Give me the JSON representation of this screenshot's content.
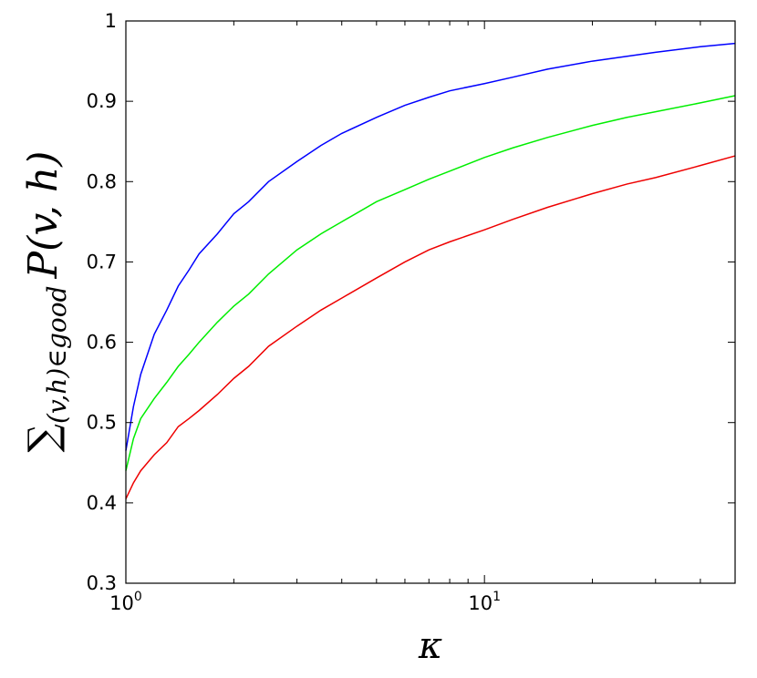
{
  "chart_data": {
    "type": "line",
    "title": "",
    "xlabel": "κ",
    "ylabel": {
      "sum": "∑",
      "subscript": "(v,h)∈good",
      "main": "P(v, h)"
    },
    "x_scale": "log",
    "xlim": [
      1,
      50
    ],
    "ylim": [
      0.3,
      1.0
    ],
    "grid": false,
    "legend": "none",
    "x_ticks": [
      {
        "value": 1,
        "base": "10",
        "exp": "0"
      },
      {
        "value": 10,
        "base": "10",
        "exp": "1"
      }
    ],
    "y_ticks": [
      {
        "value": 0.3,
        "label": "0.3"
      },
      {
        "value": 0.4,
        "label": "0.4"
      },
      {
        "value": 0.5,
        "label": "0.5"
      },
      {
        "value": 0.6,
        "label": "0.6"
      },
      {
        "value": 0.7,
        "label": "0.7"
      },
      {
        "value": 0.8,
        "label": "0.8"
      },
      {
        "value": 0.9,
        "label": "0.9"
      },
      {
        "value": 1.0,
        "label": "1"
      }
    ],
    "series": [
      {
        "color": "#0000ff",
        "x": [
          1.0,
          1.05,
          1.1,
          1.2,
          1.3,
          1.4,
          1.5,
          1.6,
          1.8,
          2.0,
          2.2,
          2.5,
          3.0,
          3.5,
          4.0,
          5.0,
          6.0,
          7.0,
          8.0,
          10.0,
          12.0,
          15.0,
          20.0,
          25.0,
          30.0,
          40.0,
          50.0
        ],
        "y": [
          0.465,
          0.52,
          0.56,
          0.61,
          0.64,
          0.67,
          0.69,
          0.71,
          0.735,
          0.76,
          0.775,
          0.8,
          0.825,
          0.845,
          0.86,
          0.88,
          0.895,
          0.905,
          0.913,
          0.922,
          0.93,
          0.94,
          0.95,
          0.956,
          0.961,
          0.968,
          0.972
        ]
      },
      {
        "color": "#00ee00",
        "x": [
          1.0,
          1.05,
          1.1,
          1.2,
          1.3,
          1.4,
          1.5,
          1.6,
          1.8,
          2.0,
          2.2,
          2.5,
          3.0,
          3.5,
          4.0,
          5.0,
          6.0,
          7.0,
          8.0,
          10.0,
          12.0,
          15.0,
          20.0,
          25.0,
          30.0,
          40.0,
          50.0
        ],
        "y": [
          0.44,
          0.48,
          0.505,
          0.53,
          0.55,
          0.57,
          0.585,
          0.6,
          0.625,
          0.645,
          0.66,
          0.685,
          0.715,
          0.735,
          0.75,
          0.775,
          0.79,
          0.803,
          0.813,
          0.83,
          0.842,
          0.855,
          0.87,
          0.88,
          0.887,
          0.898,
          0.907
        ]
      },
      {
        "color": "#ee0000",
        "x": [
          1.0,
          1.05,
          1.1,
          1.2,
          1.3,
          1.4,
          1.5,
          1.6,
          1.8,
          2.0,
          2.2,
          2.5,
          3.0,
          3.5,
          4.0,
          5.0,
          6.0,
          7.0,
          8.0,
          10.0,
          12.0,
          15.0,
          20.0,
          25.0,
          30.0,
          40.0,
          50.0
        ],
        "y": [
          0.405,
          0.425,
          0.44,
          0.46,
          0.475,
          0.495,
          0.505,
          0.515,
          0.535,
          0.555,
          0.57,
          0.595,
          0.62,
          0.64,
          0.655,
          0.68,
          0.7,
          0.715,
          0.725,
          0.74,
          0.753,
          0.768,
          0.785,
          0.797,
          0.805,
          0.82,
          0.832
        ]
      }
    ]
  }
}
